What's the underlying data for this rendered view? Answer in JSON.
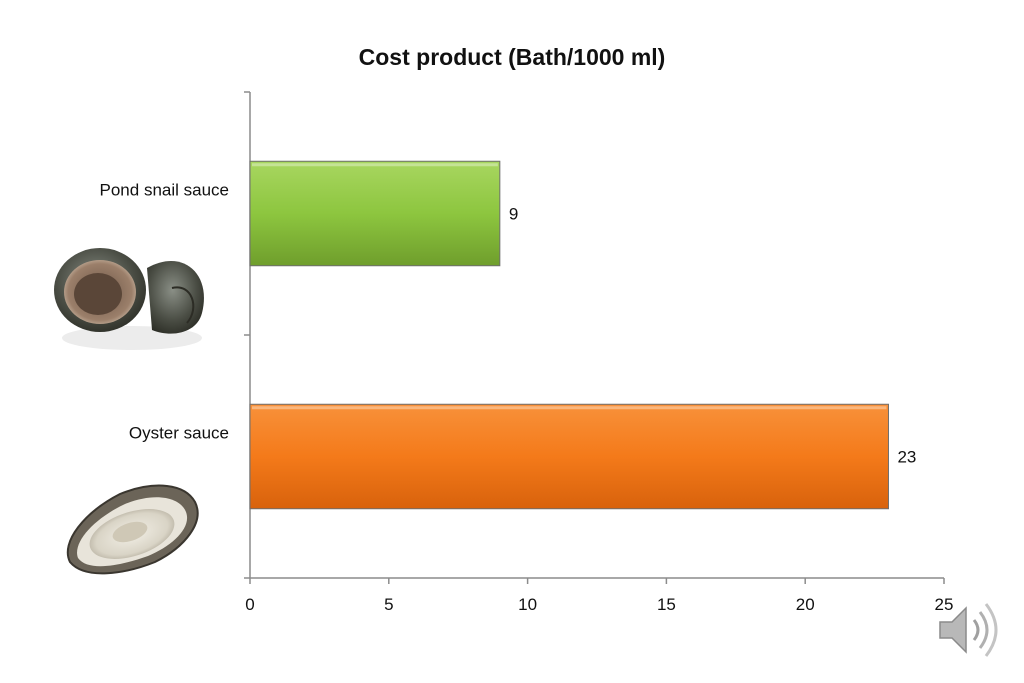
{
  "chart_data": {
    "type": "bar",
    "orientation": "horizontal",
    "title": "Cost product (Bath/1000 ml)",
    "xlabel": "",
    "ylabel": "",
    "categories": [
      "Pond snail sauce",
      "Oyster sauce"
    ],
    "values": [
      9,
      23
    ],
    "xlim": [
      0,
      25
    ],
    "xticks": [
      "0",
      "5",
      "10",
      "15",
      "20",
      "25"
    ],
    "bar_colors": [
      "#8dc63f",
      "#f47a1a"
    ],
    "data_labels": [
      "9",
      "23"
    ],
    "grid": false,
    "legend": "none"
  },
  "icons": {
    "category_images": [
      "snail-icon",
      "oyster-icon"
    ],
    "audio": "speaker-icon"
  }
}
